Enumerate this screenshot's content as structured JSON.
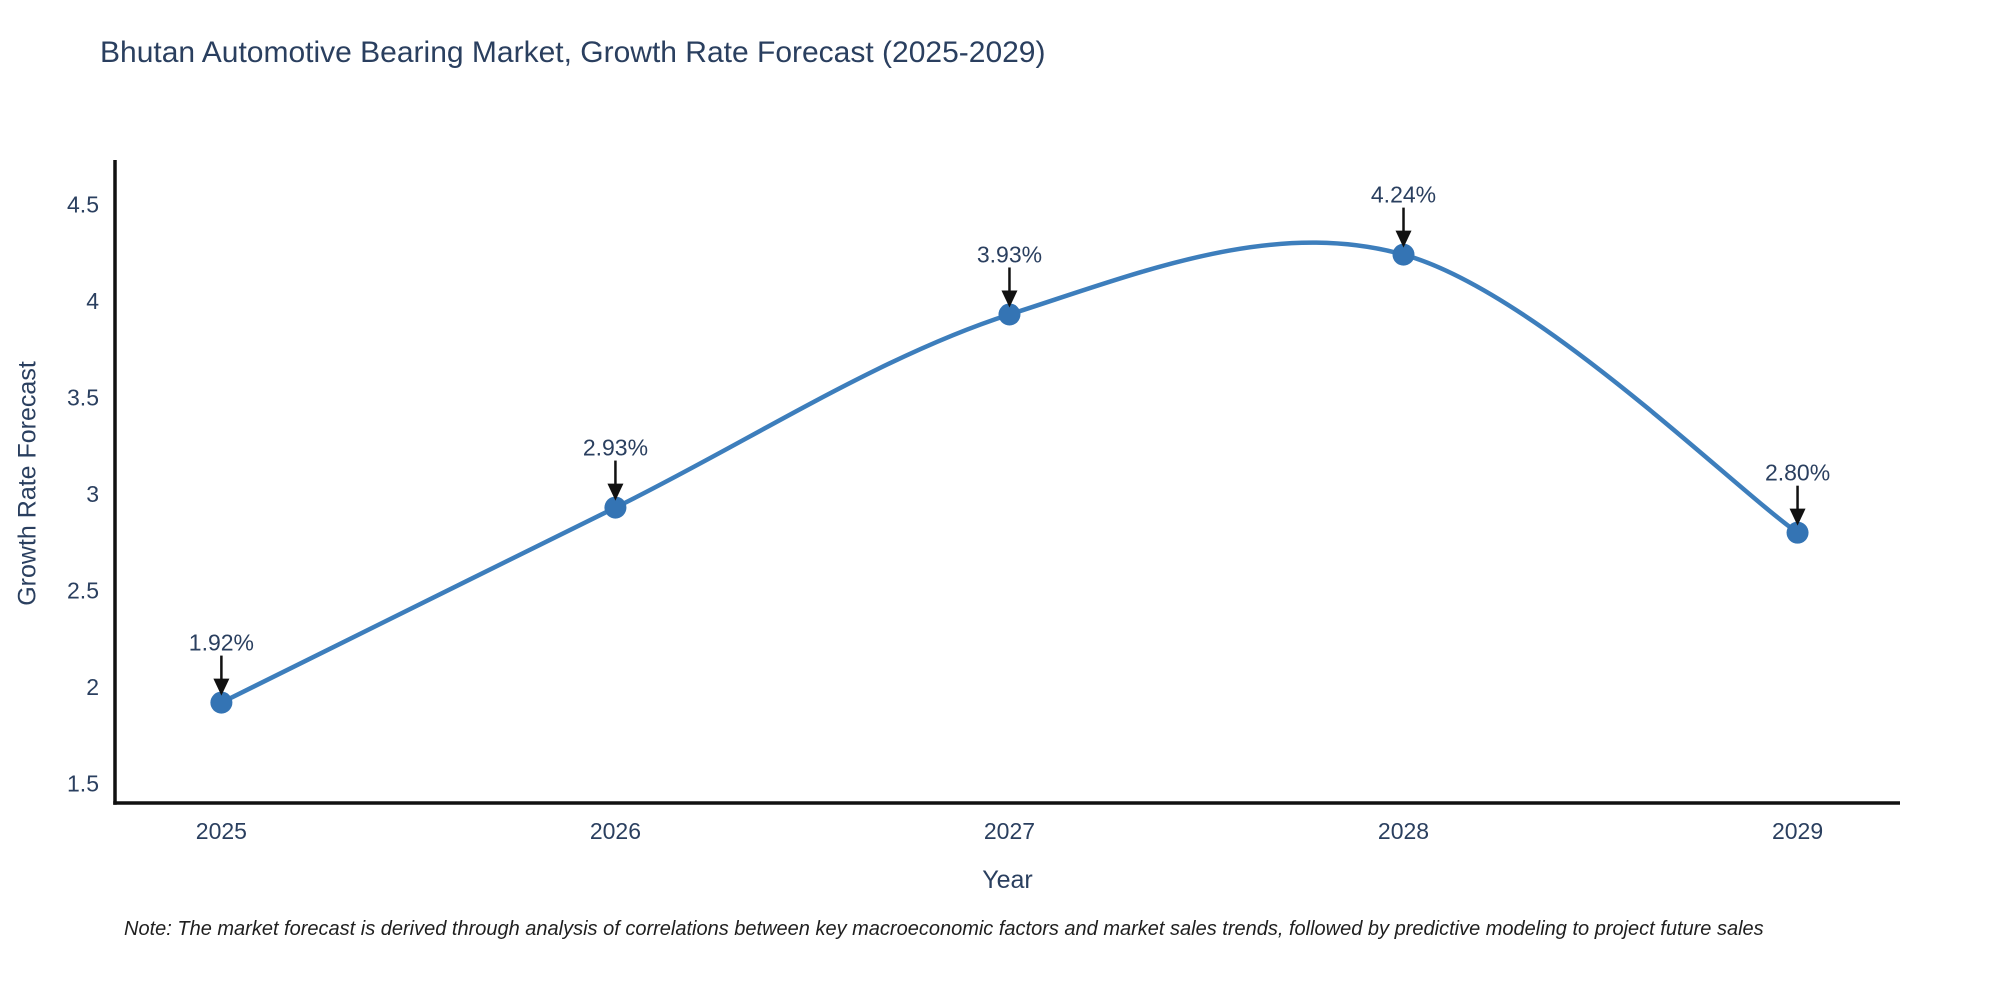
{
  "title": "Bhutan Automotive Bearing Market, Growth Rate Forecast (2025-2029)",
  "note": "Note: The market forecast is derived through analysis of correlations between key macroeconomic factors and market sales trends, followed by predictive modeling to project future sales",
  "chart_data": {
    "type": "line",
    "title": "Bhutan Automotive Bearing Market, Growth Rate Forecast (2025-2029)",
    "xlabel": "Year",
    "ylabel": "Growth Rate Forecast",
    "x": [
      2025,
      2026,
      2027,
      2028,
      2029
    ],
    "values": [
      1.92,
      2.93,
      3.93,
      4.24,
      2.8
    ],
    "point_labels": [
      "1.92%",
      "2.93%",
      "3.93%",
      "4.24%",
      "2.80%"
    ],
    "x_ticks": [
      "2025",
      "2026",
      "2027",
      "2028",
      "2029"
    ],
    "y_ticks": [
      "1.5",
      "2",
      "2.5",
      "3",
      "3.5",
      "4",
      "4.5"
    ],
    "y_tick_values": [
      1.5,
      2.0,
      2.5,
      3.0,
      3.5,
      4.0,
      4.5
    ],
    "xlim": [
      2024.73,
      2029.26
    ],
    "ylim": [
      1.4,
      4.73
    ],
    "grid": false,
    "legend_position": "none",
    "line_shape": "spline",
    "colors": {
      "line": "#3d7ebc",
      "marker": "#3474b4",
      "axis": "#111111",
      "tick_text": "#2a3f5f",
      "annotation_text": "#2a3f5f",
      "annotation_arrow": "#111111",
      "title_text": "#2a3f5f",
      "note_text": "#1f1f1f",
      "background": "#ffffff"
    }
  }
}
